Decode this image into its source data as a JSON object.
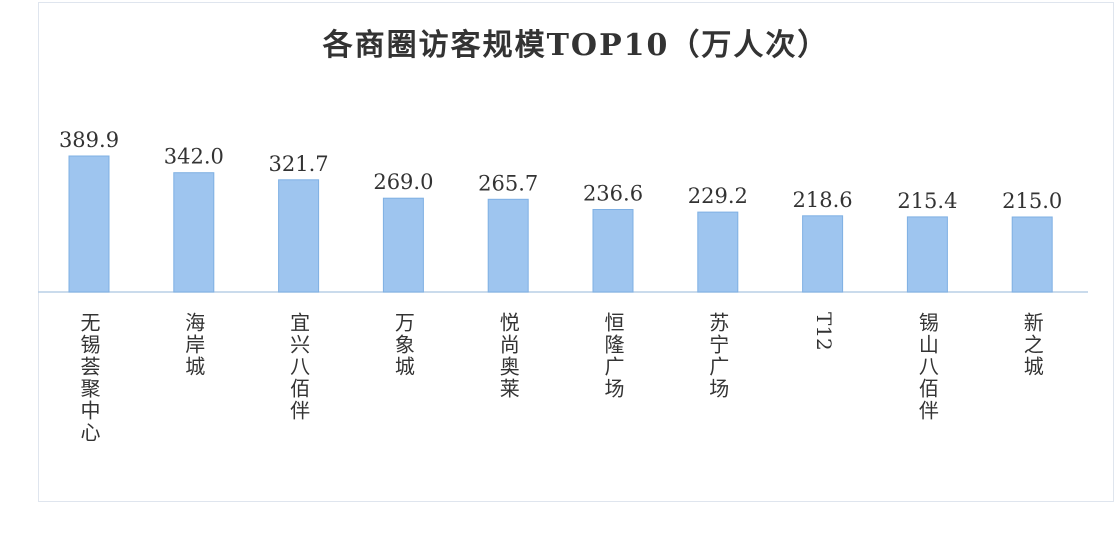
{
  "chart_data": {
    "type": "bar",
    "title": "各商圈访客规模TOP10（万人次）",
    "categories": [
      "无锡荟聚中心",
      "海岸城",
      "宜兴八佰伴",
      "万象城",
      "悦尚奥莱",
      "恒隆广场",
      "苏宁广场",
      "T12",
      "锡山八佰伴",
      "新之城"
    ],
    "values": [
      389.9,
      342.0,
      321.7,
      269.0,
      265.7,
      236.6,
      229.2,
      218.6,
      215.4,
      215.0
    ],
    "value_labels": [
      "389.9",
      "342.0",
      "321.7",
      "269.0",
      "265.7",
      "236.6",
      "229.2",
      "218.6",
      "215.4",
      "215.0"
    ],
    "xlabel": "",
    "ylabel": "",
    "ylim": [
      0,
      420
    ],
    "grid": false,
    "legend": "none",
    "colors": {
      "bar_fill": "#9ec5ef",
      "bar_stroke": "#7fb0e3",
      "axis": "#b9cfe6",
      "text": "#333333"
    }
  }
}
